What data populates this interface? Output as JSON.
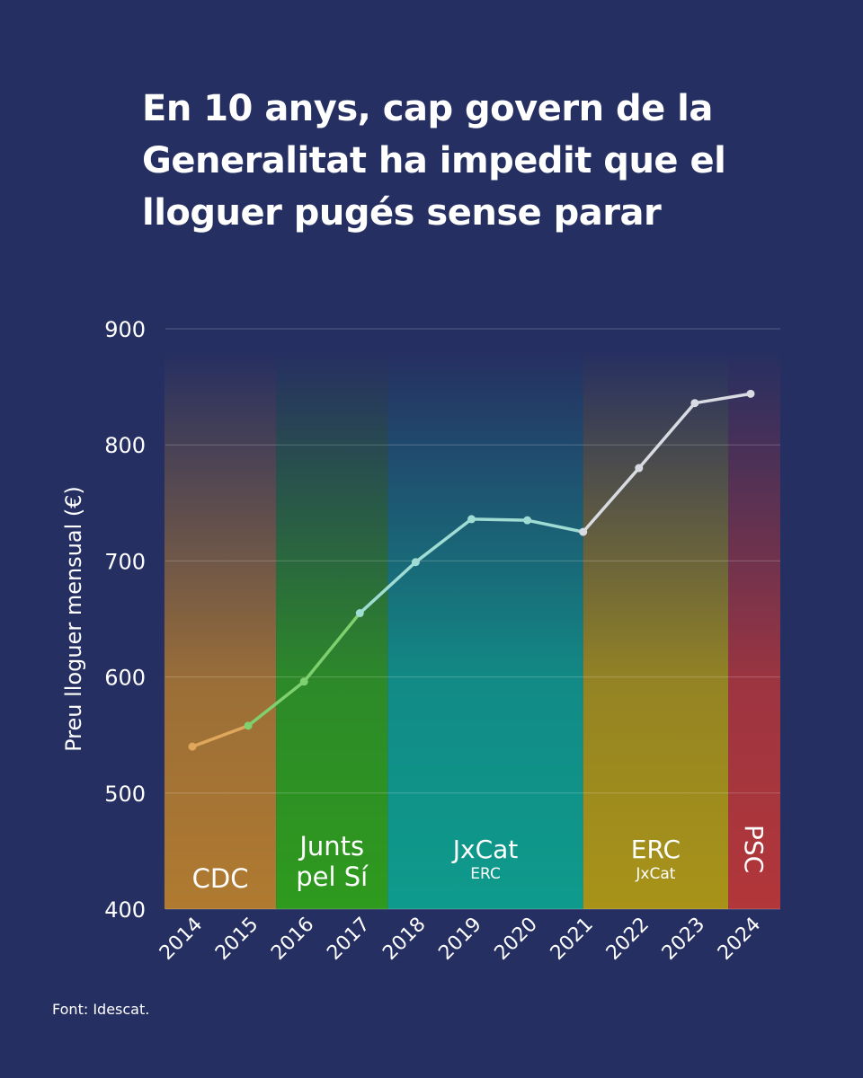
{
  "title_lines": [
    "En 10 anys, cap govern de la",
    "Generalitat ha impedit que el",
    "lloguer pugés sense parar"
  ],
  "source": "Font: Idescat.",
  "chart_data": {
    "type": "line",
    "title": "En 10 anys, cap govern de la Generalitat ha impedit que el lloguer pugés sense parar",
    "ylabel": "Preu lloguer mensual (€)",
    "xlabel": "",
    "ylim": [
      400,
      900
    ],
    "yticks": [
      400,
      500,
      600,
      700,
      800,
      900
    ],
    "grid": true,
    "x": [
      "2014",
      "2015",
      "2016",
      "2017",
      "2018",
      "2019",
      "2020",
      "2021",
      "2022",
      "2023",
      "2024"
    ],
    "series": [
      {
        "values": [
          540,
          558,
          596,
          655,
          699,
          736,
          735,
          725,
          780,
          836,
          844
        ]
      }
    ],
    "periods": [
      {
        "lines": [
          "CDC"
        ],
        "start": 2013.5,
        "end": 2015.5,
        "color": "#b07a30"
      },
      {
        "lines": [
          "Junts",
          "pel Sí"
        ],
        "start": 2015.5,
        "end": 2017.5,
        "color": "#2e9a1e"
      },
      {
        "lines": [
          "JxCat",
          "ERC"
        ],
        "start": 2017.5,
        "end": 2021.0,
        "color": "#0e9b8c"
      },
      {
        "lines": [
          "ERC",
          "JxCat"
        ],
        "start": 2021.0,
        "end": 2023.6,
        "color": "#a89318"
      },
      {
        "lines": [
          "PSC"
        ],
        "start": 2023.6,
        "end": 2024.6,
        "color": "#b2363a",
        "vertical": true
      }
    ]
  }
}
